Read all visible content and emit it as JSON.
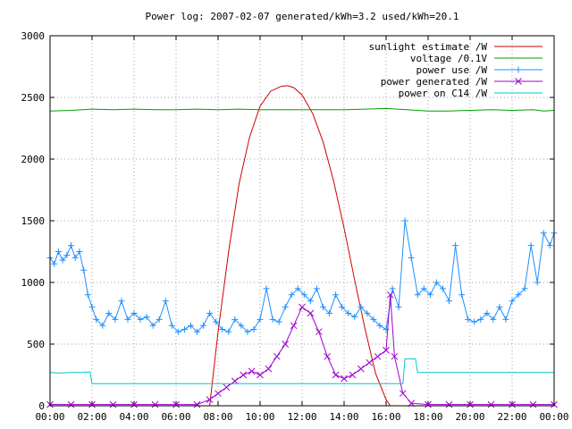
{
  "chart_data": {
    "type": "line",
    "title": "Power log: 2007-02-07 generated/kWh=3.2 used/kWh=20.1",
    "xlabel": "",
    "ylabel": "",
    "xlim": [
      0,
      24
    ],
    "ylim": [
      0,
      3000
    ],
    "grid": true,
    "legend_position": "top-right",
    "x_ticks": [
      "00:00",
      "02:00",
      "04:00",
      "06:00",
      "08:00",
      "10:00",
      "12:00",
      "14:00",
      "16:00",
      "18:00",
      "20:00",
      "22:00",
      "00:00"
    ],
    "y_ticks": [
      0,
      500,
      1000,
      1500,
      2000,
      2500,
      3000
    ],
    "series": [
      {
        "name": "sunlight estimate /W",
        "color": "#d00000",
        "style": "line",
        "x": [
          7.6,
          8.0,
          8.5,
          9.0,
          9.5,
          10.0,
          10.5,
          11.0,
          11.3,
          11.6,
          12.0,
          12.5,
          13.0,
          13.5,
          14.0,
          14.5,
          15.0,
          15.5,
          16.0,
          16.2
        ],
        "y": [
          0,
          600,
          1250,
          1800,
          2180,
          2430,
          2550,
          2590,
          2595,
          2580,
          2520,
          2370,
          2140,
          1820,
          1440,
          1020,
          620,
          260,
          50,
          0
        ]
      },
      {
        "name": "voltage /0.1V",
        "color": "#00a000",
        "style": "line",
        "x": [
          0,
          1,
          2,
          3,
          4,
          5,
          6,
          7,
          8,
          9,
          10,
          11,
          12,
          13,
          14,
          15,
          16,
          17,
          18,
          19,
          20,
          21,
          22,
          23,
          23.5,
          24
        ],
        "y": [
          2390,
          2395,
          2405,
          2400,
          2405,
          2400,
          2400,
          2405,
          2400,
          2405,
          2400,
          2400,
          2400,
          2400,
          2400,
          2405,
          2410,
          2400,
          2390,
          2390,
          2395,
          2400,
          2395,
          2400,
          2390,
          2395
        ]
      },
      {
        "name": "power use /W",
        "color": "#1e90ff",
        "style": "linepoints",
        "x": [
          0,
          0.2,
          0.4,
          0.6,
          0.8,
          1.0,
          1.2,
          1.4,
          1.6,
          1.8,
          2.0,
          2.2,
          2.5,
          2.8,
          3.1,
          3.4,
          3.7,
          4.0,
          4.3,
          4.6,
          4.9,
          5.2,
          5.5,
          5.8,
          6.1,
          6.4,
          6.7,
          7.0,
          7.3,
          7.6,
          7.9,
          8.2,
          8.5,
          8.8,
          9.1,
          9.4,
          9.7,
          10.0,
          10.3,
          10.6,
          10.9,
          11.2,
          11.5,
          11.8,
          12.1,
          12.4,
          12.7,
          13.0,
          13.3,
          13.6,
          13.9,
          14.2,
          14.5,
          14.8,
          15.1,
          15.4,
          15.7,
          16.0,
          16.3,
          16.6,
          16.9,
          17.2,
          17.5,
          17.8,
          18.1,
          18.4,
          18.7,
          19.0,
          19.3,
          19.6,
          19.9,
          20.2,
          20.5,
          20.8,
          21.1,
          21.4,
          21.7,
          22.0,
          22.3,
          22.6,
          22.9,
          23.2,
          23.5,
          23.8,
          24.0
        ],
        "y": [
          1200,
          1150,
          1250,
          1180,
          1220,
          1300,
          1200,
          1250,
          1100,
          900,
          800,
          700,
          650,
          750,
          700,
          850,
          700,
          750,
          700,
          720,
          650,
          700,
          850,
          650,
          600,
          620,
          650,
          600,
          650,
          750,
          680,
          620,
          600,
          700,
          650,
          600,
          620,
          700,
          950,
          700,
          680,
          800,
          900,
          950,
          900,
          850,
          950,
          800,
          750,
          900,
          800,
          750,
          720,
          800,
          750,
          700,
          650,
          620,
          950,
          800,
          1500,
          1200,
          900,
          950,
          900,
          1000,
          950,
          850,
          1300,
          900,
          700,
          680,
          700,
          750,
          700,
          800,
          700,
          850,
          900,
          950,
          1300,
          1000,
          1400,
          1300,
          1400
        ]
      },
      {
        "name": "power generated /W",
        "color": "#a000d0",
        "style": "linepoints",
        "x": [
          0,
          1,
          2,
          3,
          4,
          5,
          6,
          7,
          7.6,
          8.0,
          8.4,
          8.8,
          9.2,
          9.6,
          10.0,
          10.4,
          10.8,
          11.2,
          11.6,
          12.0,
          12.4,
          12.8,
          13.2,
          13.6,
          14.0,
          14.4,
          14.8,
          15.2,
          15.6,
          16.0,
          16.2,
          16.4,
          16.8,
          17.2,
          18,
          19,
          20,
          21,
          22,
          23,
          24
        ],
        "y": [
          10,
          10,
          10,
          10,
          10,
          10,
          10,
          10,
          50,
          100,
          150,
          200,
          250,
          280,
          250,
          300,
          400,
          500,
          650,
          800,
          750,
          600,
          400,
          250,
          220,
          250,
          300,
          350,
          400,
          450,
          900,
          400,
          100,
          20,
          10,
          10,
          10,
          10,
          10,
          10,
          10
        ]
      },
      {
        "name": "power on C14 /W",
        "color": "#00c8c8",
        "style": "line",
        "x": [
          0,
          0.5,
          1.0,
          1.5,
          1.9,
          2.0,
          3.0,
          5.0,
          7.0,
          9.0,
          11.0,
          13.0,
          15.0,
          16.0,
          16.8,
          16.9,
          17.0,
          17.4,
          17.5,
          18.0,
          20.0,
          22.0,
          24.0
        ],
        "y": [
          270,
          265,
          270,
          270,
          275,
          180,
          180,
          180,
          180,
          180,
          180,
          180,
          180,
          180,
          180,
          380,
          380,
          380,
          270,
          270,
          270,
          270,
          270
        ]
      }
    ]
  }
}
